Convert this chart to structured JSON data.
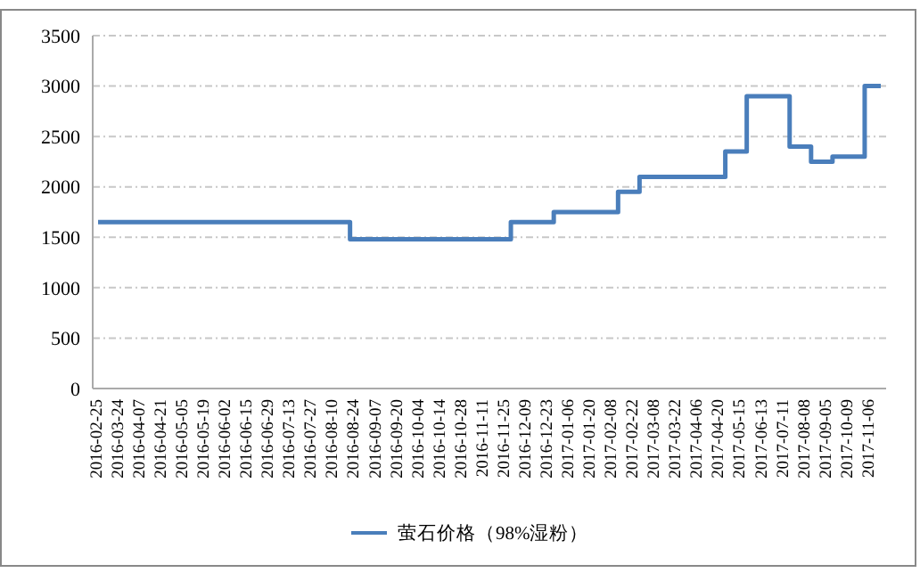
{
  "chart_data": {
    "type": "step",
    "categories": [
      "2016-02-25",
      null,
      "2016-03-24",
      null,
      "2016-04-07",
      null,
      "2016-04-21",
      null,
      "2016-05-05",
      null,
      "2016-05-19",
      null,
      "2016-06-02",
      null,
      "2016-06-15",
      null,
      "2016-06-29",
      null,
      "2016-07-13",
      null,
      "2016-07-27",
      null,
      "2016-08-10",
      null,
      "2016-08-24",
      null,
      "2016-09-07",
      null,
      "2016-09-20",
      null,
      "2016-10-04",
      null,
      "2016-10-14",
      null,
      "2016-10-28",
      null,
      "2016-11-11",
      null,
      "2016-11-25",
      null,
      "2016-12-09",
      null,
      "2016-12-23",
      null,
      "2017-01-06",
      null,
      "2017-01-20",
      null,
      "2017-02-08",
      null,
      "2017-02-22",
      null,
      "2017-03-08",
      null,
      "2017-03-22",
      null,
      "2017-04-06",
      null,
      "2017-04-20",
      null,
      "2017-05-15",
      null,
      "2017-06-13",
      null,
      "2017-07-11",
      null,
      "2017-08-08",
      null,
      "2017-09-05",
      null,
      "2017-10-09",
      null,
      "2017-11-06",
      null
    ],
    "series": [
      {
        "name": "萤石价格（98%湿粉）",
        "color": "#4a7ebb",
        "values": [
          1650,
          1650,
          1650,
          1650,
          1650,
          1650,
          1650,
          1650,
          1650,
          1650,
          1650,
          1650,
          1650,
          1650,
          1650,
          1650,
          1650,
          1650,
          1650,
          1650,
          1650,
          1650,
          1650,
          1650,
          1480,
          1480,
          1480,
          1480,
          1480,
          1480,
          1480,
          1480,
          1480,
          1480,
          1480,
          1480,
          1480,
          1480,
          1480,
          1650,
          1650,
          1650,
          1650,
          1750,
          1750,
          1750,
          1750,
          1750,
          1750,
          1950,
          1950,
          2100,
          2100,
          2100,
          2100,
          2100,
          2100,
          2100,
          2100,
          2350,
          2350,
          2900,
          2900,
          2900,
          2900,
          2400,
          2400,
          2250,
          2250,
          2300,
          2300,
          2300,
          3000,
          3000
        ]
      }
    ],
    "ylim": [
      0,
      3500
    ],
    "yticks": [
      0,
      500,
      1000,
      1500,
      2000,
      2500,
      3000,
      3500
    ],
    "grid": "y",
    "legend": "bottom",
    "marker": "none",
    "line_style": "solid"
  }
}
